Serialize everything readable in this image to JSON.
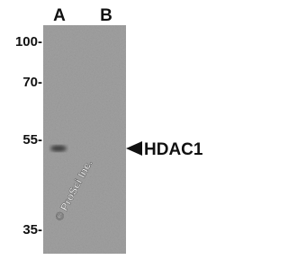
{
  "lanes": [
    "A",
    "B"
  ],
  "markers": [
    "100-",
    "70-",
    "55-",
    "35-"
  ],
  "target": "HDAC1",
  "watermark": "© ProSci Inc."
}
